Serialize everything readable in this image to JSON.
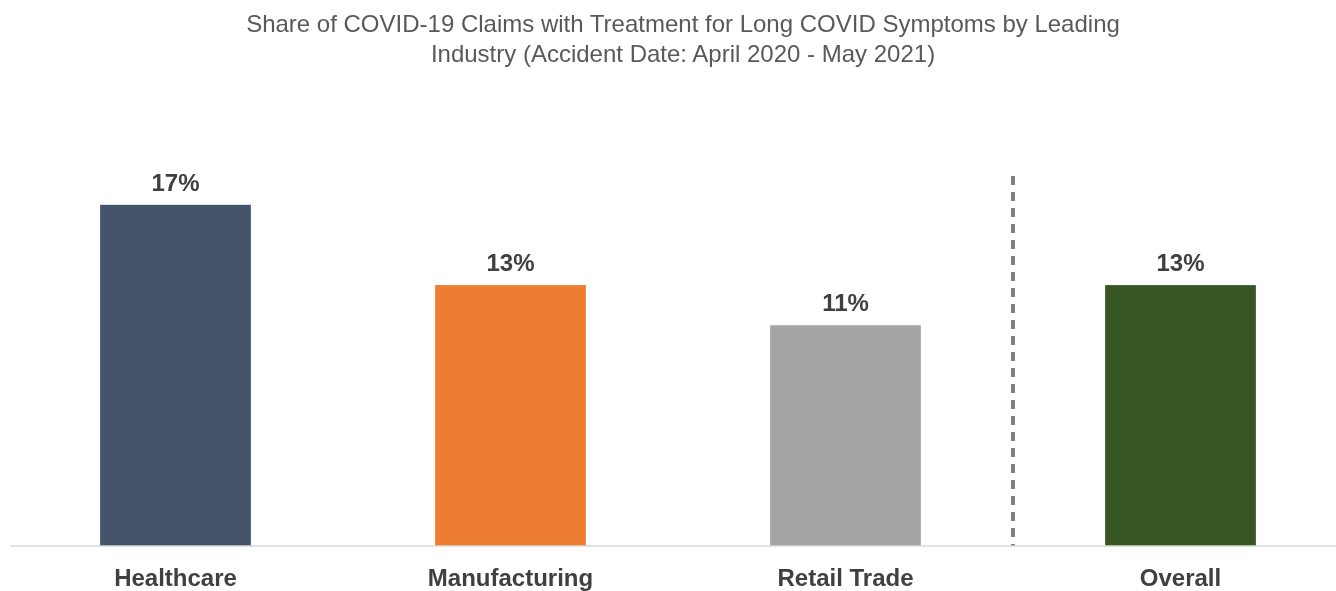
{
  "chart_data": {
    "type": "bar",
    "title": "Share of COVID-19 Claims with Treatment for Long COVID Symptoms by Leading Industry (Accident Date: April 2020 - May 2021)",
    "categories": [
      "Healthcare",
      "Manufacturing",
      "Retail Trade",
      "Overall"
    ],
    "values": [
      17,
      13,
      11,
      13
    ],
    "colors": [
      "#44546a",
      "#ed7d31",
      "#a5a5a5",
      "#375623"
    ],
    "data_labels": true,
    "value_labels": [
      "17%",
      "13%",
      "11%",
      "13%"
    ]
  }
}
